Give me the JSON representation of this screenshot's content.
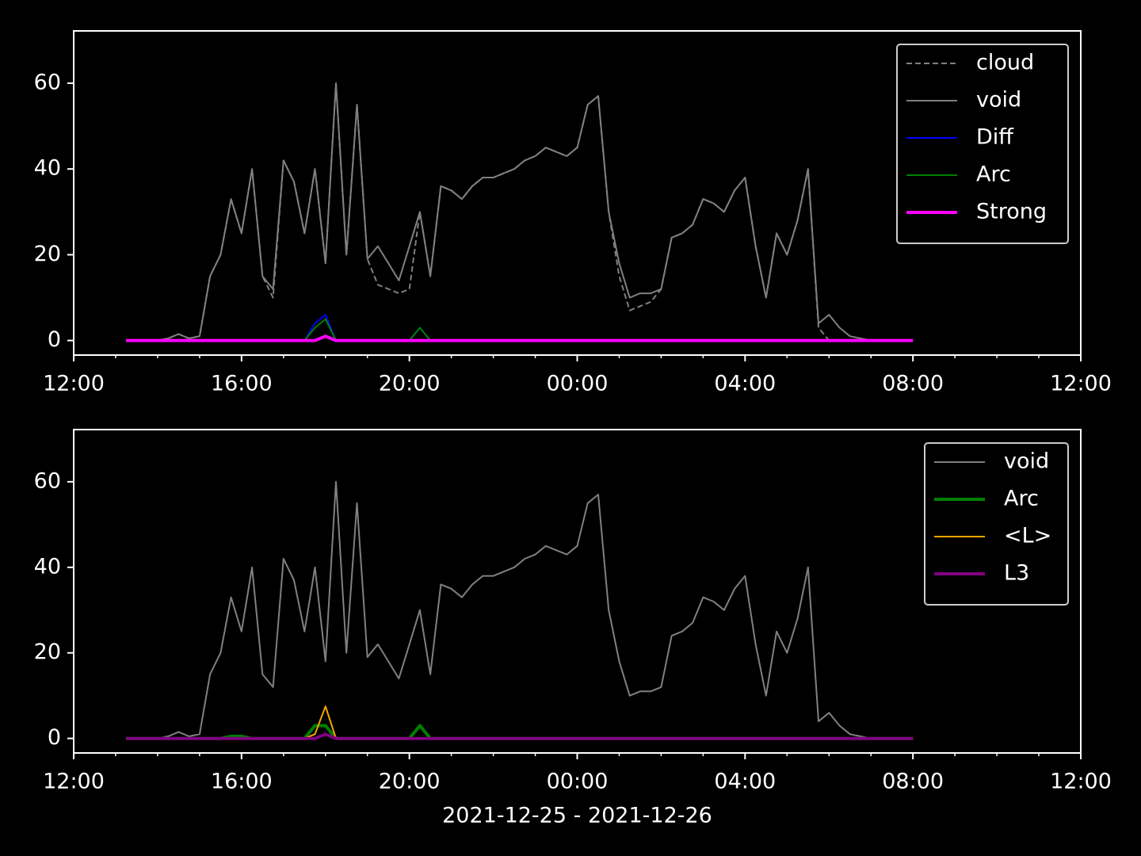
{
  "chart_data": [
    {
      "type": "line",
      "x": [
        1.25,
        1.5,
        1.75,
        2.0,
        2.25,
        2.5,
        2.75,
        3.0,
        3.25,
        3.5,
        3.75,
        4.0,
        4.25,
        4.5,
        4.75,
        5.0,
        5.25,
        5.5,
        5.75,
        6.0,
        6.25,
        6.5,
        6.75,
        7.0,
        7.25,
        7.5,
        7.75,
        8.0,
        8.25,
        8.5,
        8.75,
        9.0,
        9.25,
        9.5,
        9.75,
        10.0,
        10.25,
        10.5,
        10.75,
        11.0,
        11.25,
        11.5,
        11.75,
        12.0,
        12.25,
        12.5,
        12.75,
        13.0,
        13.25,
        13.5,
        13.75,
        14.0,
        14.25,
        14.5,
        14.75,
        15.0,
        15.25,
        15.5,
        15.75,
        16.0,
        16.25,
        16.5,
        16.75,
        17.0,
        17.25,
        17.5,
        17.75,
        18.0,
        18.25,
        18.5,
        18.75,
        19.0,
        19.25,
        19.5,
        19.75,
        20.0
      ],
      "series": [
        {
          "name": "cloud",
          "color": "#808080",
          "dash": true,
          "width": 2,
          "values": [
            0,
            0,
            0,
            0,
            0.5,
            1.5,
            0.5,
            1,
            15,
            20,
            33,
            25,
            40,
            15,
            10,
            42,
            37,
            25,
            40,
            18,
            60,
            20,
            55,
            19,
            13,
            12,
            11,
            12,
            30,
            15,
            36,
            35,
            33,
            36,
            38,
            38,
            39,
            40,
            42,
            43,
            45,
            44,
            43,
            45,
            55,
            57,
            30,
            15,
            7,
            8,
            9,
            12,
            24,
            25,
            27,
            33,
            32,
            30,
            35,
            38,
            22,
            10,
            25,
            20,
            28,
            40,
            3,
            0,
            0,
            0,
            0,
            0,
            0,
            0,
            0,
            0
          ]
        },
        {
          "name": "void",
          "color": "#808080",
          "width": 2,
          "values": [
            0,
            0,
            0,
            0,
            0.5,
            1.5,
            0.5,
            1,
            15,
            20,
            33,
            25,
            40,
            15,
            12,
            42,
            37,
            25,
            40,
            18,
            60,
            20,
            55,
            19,
            22,
            18,
            14,
            22,
            30,
            15,
            36,
            35,
            33,
            36,
            38,
            38,
            39,
            40,
            42,
            43,
            45,
            44,
            43,
            45,
            55,
            57,
            30,
            18,
            10,
            11,
            11,
            12,
            24,
            25,
            27,
            33,
            32,
            30,
            35,
            38,
            22,
            10,
            25,
            20,
            28,
            40,
            4,
            6,
            3,
            1,
            0.5,
            0,
            0,
            0,
            0,
            0
          ]
        },
        {
          "name": "Diff",
          "color": "#0000ff",
          "width": 2,
          "values": [
            0,
            0,
            0,
            0,
            0,
            0,
            0,
            0,
            0,
            0,
            0,
            0,
            0,
            0,
            0,
            0,
            0,
            0,
            4,
            6,
            0,
            0,
            0,
            0,
            0,
            0,
            0,
            0,
            3,
            0,
            0,
            0,
            0,
            0,
            0,
            0,
            0,
            0,
            0,
            0,
            0,
            0,
            0,
            0,
            0,
            0,
            0,
            0,
            0,
            0,
            0,
            0,
            0,
            0,
            0,
            0,
            0,
            0,
            0,
            0,
            0,
            0,
            0,
            0,
            0,
            0,
            0,
            0,
            0,
            0,
            0,
            0,
            0,
            0,
            0,
            0
          ]
        },
        {
          "name": "Arc",
          "color": "#008000",
          "width": 2,
          "values": [
            0,
            0,
            0,
            0,
            0,
            0,
            0,
            0,
            0,
            0,
            0,
            0,
            0,
            0,
            0,
            0,
            0,
            0,
            3,
            5,
            0,
            0,
            0,
            0,
            0,
            0,
            0,
            0,
            3,
            0,
            0,
            0,
            0,
            0,
            0,
            0,
            0,
            0,
            0,
            0,
            0,
            0,
            0,
            0,
            0,
            0,
            0,
            0,
            0,
            0,
            0,
            0,
            0,
            0,
            0,
            0,
            0,
            0,
            0,
            0,
            0,
            0,
            0,
            0,
            0,
            0,
            0,
            0,
            0,
            0,
            0,
            0,
            0,
            0,
            0,
            0
          ]
        },
        {
          "name": "Strong",
          "color": "#ff00ff",
          "width": 4,
          "values": [
            0,
            0,
            0,
            0,
            0,
            0,
            0,
            0,
            0,
            0,
            0,
            0,
            0,
            0,
            0,
            0,
            0,
            0,
            0,
            1,
            0,
            0,
            0,
            0,
            0,
            0,
            0,
            0,
            0,
            0,
            0,
            0,
            0,
            0,
            0,
            0,
            0,
            0,
            0,
            0,
            0,
            0,
            0,
            0,
            0,
            0,
            0,
            0,
            0,
            0,
            0,
            0,
            0,
            0,
            0,
            0,
            0,
            0,
            0,
            0,
            0,
            0,
            0,
            0,
            0,
            0,
            0,
            0,
            0,
            0,
            0,
            0,
            0,
            0,
            0,
            0
          ]
        }
      ],
      "xlim": [
        0,
        24
      ],
      "xticks": [
        {
          "value": 0,
          "label": "12:00"
        },
        {
          "value": 4,
          "label": "16:00"
        },
        {
          "value": 8,
          "label": "20:00"
        },
        {
          "value": 12,
          "label": "00:00"
        },
        {
          "value": 16,
          "label": "04:00"
        },
        {
          "value": 20,
          "label": "08:00"
        },
        {
          "value": 24,
          "label": "12:00"
        }
      ],
      "xminorticks": [
        1,
        2,
        3,
        5,
        6,
        7,
        9,
        10,
        11,
        13,
        14,
        15,
        17,
        18,
        19,
        21,
        22,
        23
      ],
      "ylim": [
        -3.4,
        72.2
      ],
      "yticks": [
        0,
        20,
        40,
        60
      ],
      "legend": "upper right"
    },
    {
      "type": "line",
      "x": [
        1.25,
        1.5,
        1.75,
        2.0,
        2.25,
        2.5,
        2.75,
        3.0,
        3.25,
        3.5,
        3.75,
        4.0,
        4.25,
        4.5,
        4.75,
        5.0,
        5.25,
        5.5,
        5.75,
        6.0,
        6.25,
        6.5,
        6.75,
        7.0,
        7.25,
        7.5,
        7.75,
        8.0,
        8.25,
        8.5,
        8.75,
        9.0,
        9.25,
        9.5,
        9.75,
        10.0,
        10.25,
        10.5,
        10.75,
        11.0,
        11.25,
        11.5,
        11.75,
        12.0,
        12.25,
        12.5,
        12.75,
        13.0,
        13.25,
        13.5,
        13.75,
        14.0,
        14.25,
        14.5,
        14.75,
        15.0,
        15.25,
        15.5,
        15.75,
        16.0,
        16.25,
        16.5,
        16.75,
        17.0,
        17.25,
        17.5,
        17.75,
        18.0,
        18.25,
        18.5,
        18.75,
        19.0,
        19.25,
        19.5,
        19.75,
        20.0
      ],
      "series": [
        {
          "name": "void",
          "color": "#808080",
          "width": 2,
          "values": [
            0,
            0,
            0,
            0,
            0.5,
            1.5,
            0.5,
            1,
            15,
            20,
            33,
            25,
            40,
            15,
            12,
            42,
            37,
            25,
            40,
            18,
            60,
            20,
            55,
            19,
            22,
            18,
            14,
            22,
            30,
            15,
            36,
            35,
            33,
            36,
            38,
            38,
            39,
            40,
            42,
            43,
            45,
            44,
            43,
            45,
            55,
            57,
            30,
            18,
            10,
            11,
            11,
            12,
            24,
            25,
            27,
            33,
            32,
            30,
            35,
            38,
            22,
            10,
            25,
            20,
            28,
            40,
            4,
            6,
            3,
            1,
            0.5,
            0,
            0,
            0,
            0,
            0
          ]
        },
        {
          "name": "Arc",
          "color": "#008000",
          "width": 4,
          "values": [
            0,
            0,
            0,
            0,
            0,
            0,
            0,
            0,
            0,
            0,
            0.5,
            0.5,
            0,
            0,
            0,
            0,
            0,
            0,
            3,
            3,
            0,
            0,
            0,
            0,
            0,
            0,
            0,
            0,
            3,
            0,
            0,
            0,
            0,
            0,
            0,
            0,
            0,
            0,
            0,
            0,
            0,
            0,
            0,
            0,
            0,
            0,
            0,
            0,
            0,
            0,
            0,
            0,
            0,
            0,
            0,
            0,
            0,
            0,
            0,
            0,
            0,
            0,
            0,
            0,
            0,
            0,
            0,
            0,
            0,
            0,
            0,
            0,
            0,
            0,
            0,
            0
          ]
        },
        {
          "name": "<L>",
          "color": "#ffa500",
          "width": 2,
          "values": [
            0,
            0,
            0,
            0,
            0,
            0,
            0,
            0,
            0,
            0,
            0,
            0,
            0,
            0,
            0,
            0,
            0,
            0,
            1,
            7.5,
            0,
            0,
            0,
            0,
            0,
            0,
            0,
            0,
            0,
            0,
            0,
            0,
            0,
            0,
            0,
            0,
            0,
            0,
            0,
            0,
            0,
            0,
            0,
            0,
            0,
            0,
            0,
            0,
            0,
            0,
            0,
            0,
            0,
            0,
            0,
            0,
            0,
            0,
            0,
            0,
            0,
            0,
            0,
            0,
            0,
            0,
            0,
            0,
            0,
            0,
            0,
            0,
            0,
            0,
            0,
            0
          ]
        },
        {
          "name": "L3",
          "color": "#800080",
          "width": 4,
          "values": [
            0,
            0,
            0,
            0,
            0,
            0,
            0,
            0,
            0,
            0,
            0,
            0,
            0,
            0,
            0,
            0,
            0,
            0,
            0,
            1,
            0,
            0,
            0,
            0,
            0,
            0,
            0,
            0,
            0,
            0,
            0,
            0,
            0,
            0,
            0,
            0,
            0,
            0,
            0,
            0,
            0,
            0,
            0,
            0,
            0,
            0,
            0,
            0,
            0,
            0,
            0,
            0,
            0,
            0,
            0,
            0,
            0,
            0,
            0,
            0,
            0,
            0,
            0,
            0,
            0,
            0,
            0,
            0,
            0,
            0,
            0,
            0,
            0,
            0,
            0,
            0
          ]
        }
      ],
      "xlim": [
        0,
        24
      ],
      "xticks": [
        {
          "value": 0,
          "label": "12:00"
        },
        {
          "value": 4,
          "label": "16:00"
        },
        {
          "value": 8,
          "label": "20:00"
        },
        {
          "value": 12,
          "label": "00:00"
        },
        {
          "value": 16,
          "label": "04:00"
        },
        {
          "value": 20,
          "label": "08:00"
        },
        {
          "value": 24,
          "label": "12:00"
        }
      ],
      "xminorticks": [
        1,
        2,
        3,
        5,
        6,
        7,
        9,
        10,
        11,
        13,
        14,
        15,
        17,
        18,
        19,
        21,
        22,
        23
      ],
      "ylim": [
        -3.4,
        72.2
      ],
      "yticks": [
        0,
        20,
        40,
        60
      ],
      "legend": "upper right",
      "xlabel": "2021-12-25 - 2021-12-26"
    }
  ]
}
